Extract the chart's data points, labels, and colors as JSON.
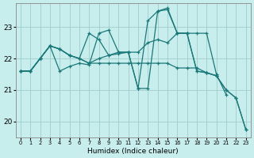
{
  "title": "",
  "xlabel": "Humidex (Indice chaleur)",
  "bg_color": "#c8eded",
  "grid_color": "#a0cccc",
  "line_color": "#1a7878",
  "xlim": [
    -0.5,
    23.5
  ],
  "ylim": [
    19.5,
    23.75
  ],
  "yticks": [
    20,
    21,
    22,
    23
  ],
  "xtick_labels": [
    "0",
    "1",
    "2",
    "3",
    "4",
    "5",
    "6",
    "7",
    "8",
    "9",
    "10",
    "11",
    "12",
    "13",
    "14",
    "15",
    "16",
    "17",
    "18",
    "19",
    "20",
    "21",
    "22",
    "23"
  ],
  "lines": [
    {
      "x": [
        0,
        1,
        2,
        3,
        4,
        5,
        6,
        7,
        8,
        9,
        10,
        11,
        12,
        13,
        14,
        15,
        16,
        17,
        18,
        19,
        20
      ],
      "y": [
        21.6,
        21.6,
        22.0,
        22.4,
        22.3,
        22.1,
        22.0,
        21.85,
        21.85,
        21.85,
        21.85,
        21.85,
        21.85,
        21.85,
        21.85,
        21.85,
        21.7,
        21.7,
        21.7,
        21.55,
        21.45
      ]
    },
    {
      "x": [
        0,
        1,
        2,
        3,
        4,
        5,
        6,
        7,
        8,
        9,
        10,
        11,
        12,
        13,
        14,
        15,
        16,
        17,
        18,
        19,
        20,
        21
      ],
      "y": [
        21.6,
        21.6,
        22.0,
        22.4,
        22.3,
        22.1,
        22.0,
        22.8,
        22.6,
        22.1,
        22.2,
        22.2,
        22.2,
        22.5,
        22.6,
        22.5,
        22.8,
        22.8,
        22.8,
        22.8,
        21.5,
        20.85
      ]
    },
    {
      "x": [
        0,
        1,
        2,
        3,
        4,
        5,
        6,
        7,
        8,
        9,
        10,
        11,
        12,
        13,
        14,
        15,
        16,
        17,
        18,
        19,
        20,
        21,
        22,
        23
      ],
      "y": [
        21.6,
        21.6,
        22.0,
        22.4,
        21.6,
        21.75,
        21.85,
        21.8,
        22.8,
        22.9,
        22.2,
        22.2,
        21.05,
        21.05,
        23.5,
        23.6,
        22.8,
        22.8,
        21.6,
        21.55,
        21.45,
        21.0,
        20.75,
        19.75
      ]
    },
    {
      "x": [
        0,
        1,
        2,
        3,
        4,
        5,
        6,
        7,
        8,
        9,
        10,
        11,
        12,
        13,
        14,
        15,
        16,
        17,
        18,
        19,
        20,
        21,
        22,
        23
      ],
      "y": [
        21.6,
        21.6,
        22.0,
        22.4,
        22.3,
        22.1,
        22.0,
        21.85,
        22.0,
        22.1,
        22.15,
        22.2,
        21.05,
        23.2,
        23.5,
        23.55,
        22.8,
        22.8,
        21.6,
        21.55,
        21.45,
        21.0,
        20.75,
        19.75
      ]
    }
  ]
}
